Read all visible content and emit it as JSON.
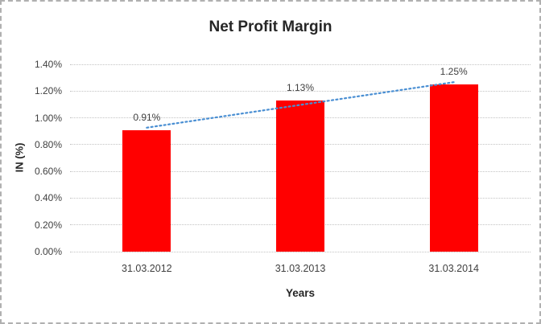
{
  "window": {
    "background_color": "#ffffff",
    "border_color": "#b0b0b0"
  },
  "chart_data": {
    "type": "bar",
    "title": "Net Profit Margin",
    "categories": [
      "31.03.2012",
      "31.03.2013",
      "31.03.2014"
    ],
    "values": [
      0.91,
      1.13,
      1.25
    ],
    "data_labels": [
      "0.91%",
      "1.13%",
      "1.25%"
    ],
    "xlabel": "Years",
    "ylabel": "IN (%)",
    "ylim": [
      0,
      1.4
    ],
    "ytick_step": 0.2,
    "ytick_labels": [
      "0.00%",
      "0.20%",
      "0.40%",
      "0.60%",
      "0.80%",
      "1.00%",
      "1.20%",
      "1.40%"
    ],
    "grid": true,
    "legend": "none",
    "bar_color": "#ff0000",
    "text_color": "#3f3f3f",
    "gridline_color": "#c3c3c3",
    "trendline": {
      "type": "linear",
      "style": "dotted",
      "color": "#4a8fd3"
    }
  }
}
